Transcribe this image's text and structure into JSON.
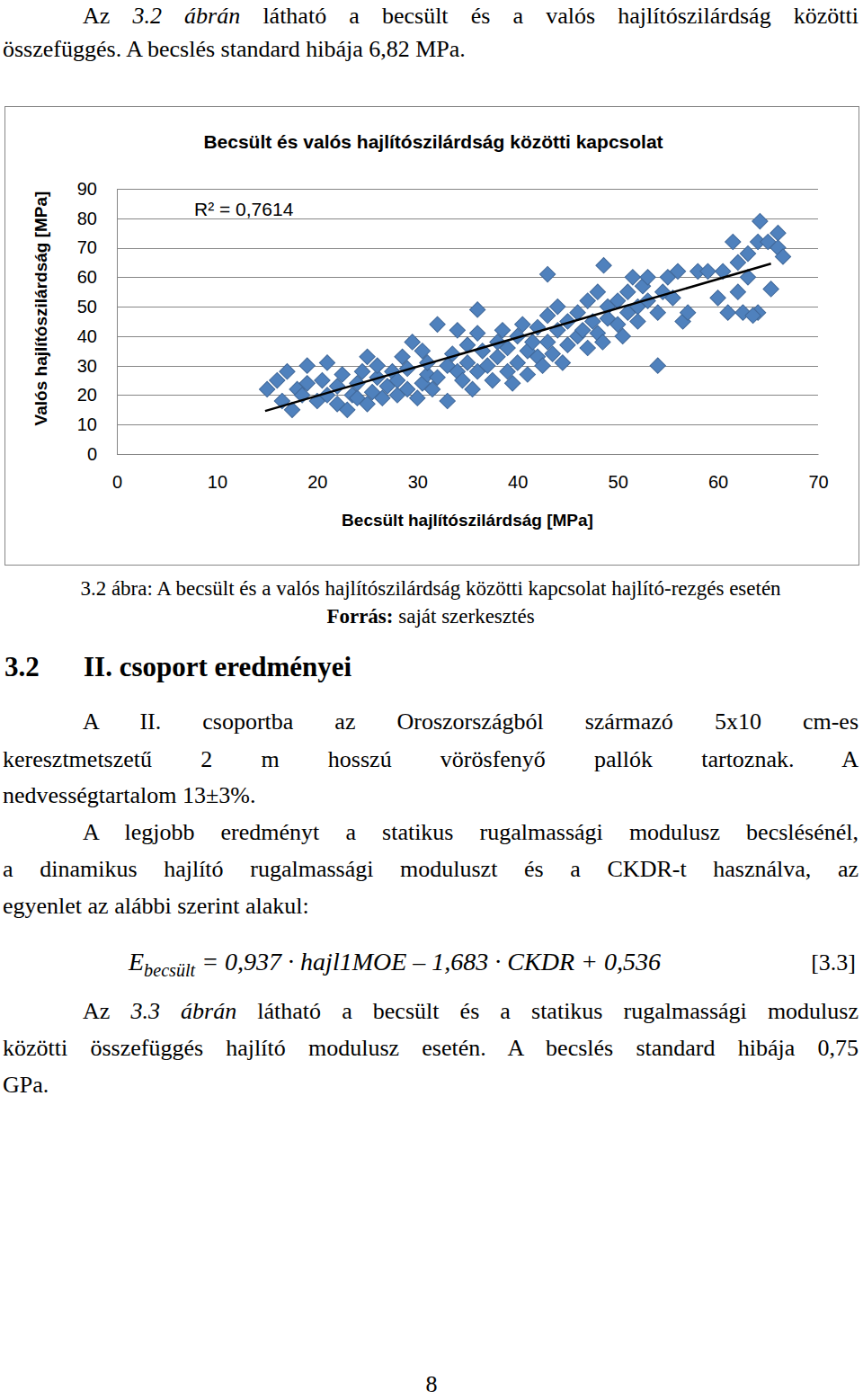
{
  "intro": {
    "lines": [
      [
        {
          "text": "Az "
        },
        {
          "text": "3.2 ábrán",
          "italic": true
        },
        {
          "text": " látható a becsült és a valós hajlítószilárdság közötti"
        }
      ],
      [
        {
          "text": "összefüggés. A becslés standard hibája 6,82 MPa."
        }
      ]
    ]
  },
  "chart_data": {
    "type": "scatter",
    "title": "Becsült és valós hajlítószilárdság közötti kapcsolat",
    "x_label": "Becsült hajlítószilárdság [MPa]",
    "y_label": "Valós hajlítószilárdság [MPa]",
    "annotation": "R² = 0,7614",
    "xlim": [
      0,
      70
    ],
    "ylim": [
      0,
      90
    ],
    "xticks": [
      0,
      10,
      20,
      30,
      40,
      50,
      60,
      70
    ],
    "yticks": [
      0,
      10,
      20,
      30,
      40,
      50,
      60,
      70,
      80,
      90
    ],
    "grid": true,
    "series": [
      {
        "type": "scatter",
        "marker": "diamond",
        "color": "#4f81bd",
        "x": [
          15,
          16,
          16.5,
          17,
          17.5,
          18,
          18.5,
          19,
          19,
          20,
          20.5,
          21,
          21,
          22,
          22,
          22.5,
          23,
          23.5,
          24,
          24,
          24.5,
          25,
          25,
          25.5,
          26,
          26,
          26.5,
          27,
          27.5,
          28,
          28,
          28.5,
          29,
          29,
          29.5,
          30,
          30.5,
          30.5,
          31,
          31,
          31.5,
          32,
          32,
          33,
          33,
          33.5,
          34,
          34,
          34.5,
          35,
          35,
          35.5,
          36,
          36,
          36.5,
          36,
          37,
          37.5,
          38,
          38,
          38.5,
          39,
          39,
          39.5,
          40,
          40,
          40.5,
          41,
          41,
          41.5,
          42,
          42,
          42.5,
          43,
          43,
          43.5,
          44,
          44,
          44.5,
          45,
          45,
          43,
          46,
          46,
          46.5,
          47,
          47,
          47.5,
          48,
          48,
          48.5,
          49,
          49,
          48.6,
          50,
          50,
          50.5,
          51,
          51,
          51.5,
          52,
          52,
          52.5,
          53,
          53,
          54,
          54.5,
          55,
          55.5,
          56,
          54,
          56.5,
          57,
          58,
          59,
          60,
          60.5,
          61,
          61.5,
          62,
          62,
          62.5,
          63,
          63,
          64,
          64,
          65,
          64.2,
          66,
          66,
          66.5,
          65.3,
          63.5
        ],
        "values": [
          22,
          25,
          18,
          28,
          15,
          22,
          20,
          24,
          30,
          18,
          25,
          20,
          31,
          17,
          23,
          27,
          15,
          20,
          19,
          24,
          28,
          17,
          33,
          21,
          26,
          30,
          19,
          23,
          28,
          20,
          25,
          33,
          22,
          29,
          38,
          19,
          24,
          35,
          27,
          31,
          22,
          44,
          26,
          30,
          18,
          34,
          28,
          42,
          25,
          37,
          31,
          22,
          41,
          28,
          35,
          49,
          30,
          25,
          38,
          33,
          42,
          28,
          36,
          24,
          40,
          31,
          44,
          35,
          27,
          38,
          43,
          33,
          30,
          47,
          38,
          34,
          50,
          42,
          31,
          45,
          37,
          61,
          48,
          40,
          42,
          52,
          36,
          45,
          55,
          41,
          38,
          50,
          46,
          64,
          52,
          44,
          40,
          55,
          48,
          60,
          50,
          45,
          57,
          60,
          52,
          48,
          55,
          60,
          53,
          62,
          30,
          45,
          48,
          62,
          62,
          53,
          62,
          48,
          72,
          65,
          55,
          48,
          68,
          60,
          48,
          72,
          72,
          79,
          70,
          75,
          67,
          56,
          47
        ]
      },
      {
        "type": "line",
        "line_style": "solid",
        "color": "#000000",
        "x": [
          14.8,
          65.3
        ],
        "values": [
          14.6,
          64.6
        ]
      }
    ]
  },
  "caption": {
    "lines": [
      [
        {
          "text": "3.2 ábra: A becsült és a valós hajlítószilárdság közötti kapcsolat hajlító-rezgés esetén"
        }
      ],
      [
        {
          "text": "Forrás:",
          "bold": true
        },
        {
          "text": " saját szerkesztés"
        }
      ]
    ]
  },
  "section": {
    "number": "3.2",
    "title": "II. csoport eredményei"
  },
  "paragraphs": [
    {
      "lines": [
        [
          {
            "text": "A II. csoportba az Oroszországból származó 5x10 cm-es"
          }
        ],
        [
          {
            "text": "keresztmetszetű 2 m hosszú vörösfenyő pallók tartoznak. A"
          }
        ],
        [
          {
            "text": "nedvességtartalom 13±3%."
          }
        ]
      ]
    },
    {
      "lines": [
        [
          {
            "text": "A legjobb eredményt a statikus rugalmassági modulusz becslésénél,"
          }
        ],
        [
          {
            "text": "a dinamikus hajlító rugalmassági moduluszt és a CKDR-t használva, az"
          }
        ],
        [
          {
            "text": "egyenlet az alábbi szerint alakul:"
          }
        ]
      ]
    },
    {
      "lines": [
        [
          {
            "text": "Az "
          },
          {
            "text": "3.3 ábrán",
            "italic": true
          },
          {
            "text": " látható a becsült és a statikus rugalmassági modulusz"
          }
        ],
        [
          {
            "text": "közötti összefüggés hajlító modulusz esetén. A becslés standard hibája 0,75"
          }
        ],
        [
          {
            "text": "GPa."
          }
        ]
      ]
    }
  ],
  "equation": {
    "segments": [
      {
        "text": "E",
        "italic": true
      },
      {
        "text": "becsült",
        "italic": true,
        "sub": true
      },
      {
        "text": " = 0,937 · hajl1MOE – 1,683 · CKDR + 0,536",
        "italic": true
      }
    ],
    "label": "[3.3]"
  },
  "page_number": "8"
}
